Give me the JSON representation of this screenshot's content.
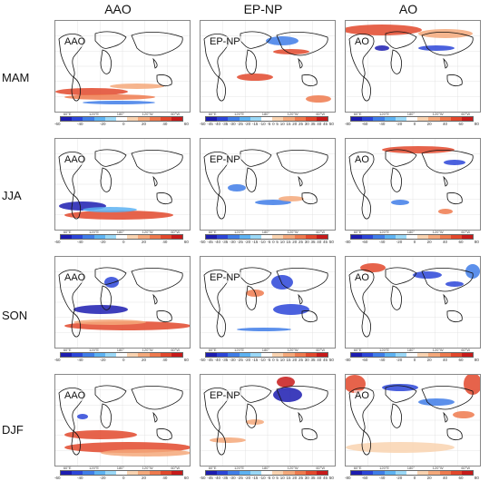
{
  "columns": [
    "AAO",
    "EP-NP",
    "AO"
  ],
  "rows": [
    "MAM",
    "JJA",
    "SON",
    "DJF"
  ],
  "panel_labels": [
    "AAO",
    "EP-NP",
    "AO"
  ],
  "colorbar": {
    "colors": [
      "#1c1cb0",
      "#2b45d8",
      "#3f7de8",
      "#5cb2f2",
      "#9ad8f7",
      "#ffffff",
      "#f9d3b0",
      "#f4a87a",
      "#ee7a4e",
      "#e2482c",
      "#c71a1a"
    ],
    "ticks_a": [
      "-60",
      "-40",
      "-20",
      "0",
      "20",
      "40",
      "60"
    ],
    "ticks_b": [
      "-50",
      "-45",
      "-40",
      "-35",
      "-30",
      "-25",
      "-20",
      "-15",
      "-10",
      "-5",
      "0",
      "5",
      "10",
      "15",
      "20",
      "25",
      "30",
      "35",
      "40",
      "45",
      "50"
    ],
    "ticks_c": [
      "-80",
      "-60",
      "-40",
      "-20",
      "0",
      "20",
      "40",
      "60",
      "80"
    ]
  },
  "lon_labels": [
    "60°E",
    "120°E",
    "180°",
    "120°W",
    "60°W"
  ]
}
